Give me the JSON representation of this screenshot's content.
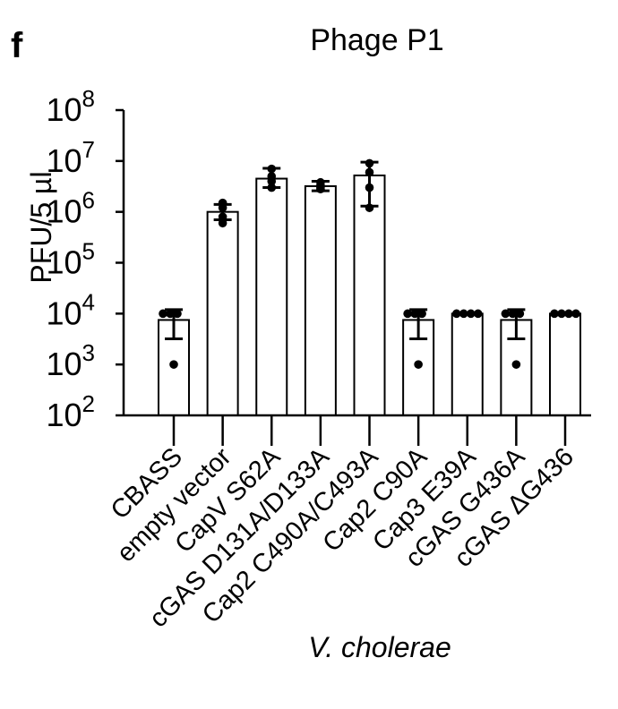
{
  "panel_letter": "f",
  "chart_data": {
    "type": "bar",
    "title": "Phage P1",
    "xlabel": "V. cholerae",
    "ylabel": "PFU/5 µl",
    "yscale": "log",
    "ylim": [
      100,
      100000000
    ],
    "yticks": [
      {
        "base": "10",
        "exp": "2",
        "value": 100
      },
      {
        "base": "10",
        "exp": "3",
        "value": 1000
      },
      {
        "base": "10",
        "exp": "4",
        "value": 10000
      },
      {
        "base": "10",
        "exp": "5",
        "value": 100000
      },
      {
        "base": "10",
        "exp": "6",
        "value": 1000000
      },
      {
        "base": "10",
        "exp": "7",
        "value": 10000000
      },
      {
        "base": "10",
        "exp": "8",
        "value": 100000000
      }
    ],
    "categories": [
      "CBASS",
      "empty vector",
      "CapV S62A",
      "cGAS D131A/D133A",
      "Cap2 C490A/C493A",
      "Cap2 C90A",
      "Cap3 E39A",
      "cGAS G436A",
      "cGAS ΔG436"
    ],
    "values": [
      7500,
      1000000,
      4500000,
      3200000,
      5200000,
      7500,
      10000,
      7500,
      10000
    ],
    "error_low": [
      3200,
      700000,
      3000000,
      2600000,
      1300000,
      3200,
      10000,
      3200,
      10000
    ],
    "error_high": [
      12000,
      1400000,
      7200000,
      4000000,
      9500000,
      12000,
      10000,
      12000,
      10000
    ],
    "points": [
      [
        10000,
        10000,
        10000,
        1000
      ],
      [
        600000,
        800000,
        1200000,
        1500000
      ],
      [
        3000000,
        4000000,
        5000000,
        7000000
      ],
      [
        2800000,
        3000000,
        3300000,
        3800000
      ],
      [
        1200000,
        3000000,
        6000000,
        9000000
      ],
      [
        10000,
        10000,
        10000,
        1000
      ],
      [
        10000,
        10000,
        10000,
        10000
      ],
      [
        10000,
        10000,
        10000,
        1000
      ],
      [
        10000,
        10000,
        10000,
        10000
      ]
    ],
    "grid": false,
    "legend": "none",
    "bar_color": "#ffffff",
    "edge_color": "#000000"
  }
}
